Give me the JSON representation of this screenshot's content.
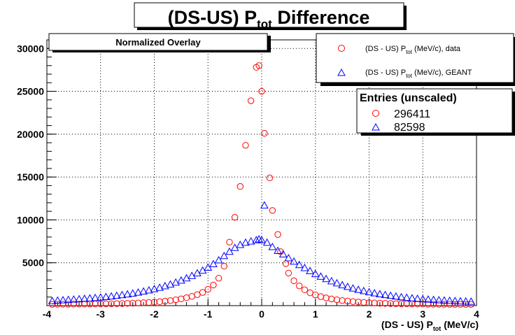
{
  "chart_data": {
    "type": "scatter",
    "title": "(DS-US) P_tot Difference",
    "xlabel": "(DS - US) P_tot (MeV/c)",
    "ylabel": "",
    "xlim": [
      -4,
      4
    ],
    "ylim": [
      0,
      31000
    ],
    "xticks": [
      -4,
      -3,
      -2,
      -1,
      0,
      1,
      2,
      3,
      4
    ],
    "yticks": [
      5000,
      10000,
      15000,
      20000,
      25000,
      30000
    ],
    "grid": true,
    "overlay_label": "Normalized Overlay",
    "legend": {
      "position": "top-right"
    },
    "series": [
      {
        "name": "(DS - US) P_tot (MeV/c), data",
        "marker": "circle",
        "color": "#ff0000",
        "points": [
          [
            -3.9,
            150
          ],
          [
            -3.8,
            160
          ],
          [
            -3.7,
            165
          ],
          [
            -3.6,
            170
          ],
          [
            -3.5,
            175
          ],
          [
            -3.4,
            180
          ],
          [
            -3.3,
            185
          ],
          [
            -3.2,
            190
          ],
          [
            -3.1,
            195
          ],
          [
            -3.0,
            200
          ],
          [
            -2.9,
            210
          ],
          [
            -2.8,
            220
          ],
          [
            -2.7,
            235
          ],
          [
            -2.6,
            250
          ],
          [
            -2.5,
            270
          ],
          [
            -2.4,
            290
          ],
          [
            -2.3,
            310
          ],
          [
            -2.2,
            340
          ],
          [
            -2.1,
            370
          ],
          [
            -2.0,
            410
          ],
          [
            -1.9,
            460
          ],
          [
            -1.8,
            520
          ],
          [
            -1.7,
            590
          ],
          [
            -1.6,
            680
          ],
          [
            -1.5,
            790
          ],
          [
            -1.4,
            920
          ],
          [
            -1.3,
            1080
          ],
          [
            -1.2,
            1280
          ],
          [
            -1.1,
            1540
          ],
          [
            -1.0,
            1900
          ],
          [
            -0.9,
            2400
          ],
          [
            -0.8,
            3200
          ],
          [
            -0.7,
            4600
          ],
          [
            -0.6,
            7400
          ],
          [
            -0.5,
            10300
          ],
          [
            -0.4,
            13900
          ],
          [
            -0.3,
            18700
          ],
          [
            -0.2,
            23900
          ],
          [
            -0.1,
            27800
          ],
          [
            -0.05,
            28000
          ],
          [
            0.0,
            25000
          ],
          [
            0.05,
            20100
          ],
          [
            0.15,
            14900
          ],
          [
            0.2,
            11100
          ],
          [
            0.3,
            8300
          ],
          [
            0.35,
            6300
          ],
          [
            0.45,
            4900
          ],
          [
            0.5,
            3800
          ],
          [
            0.6,
            2900
          ],
          [
            0.7,
            2300
          ],
          [
            0.8,
            1850
          ],
          [
            0.9,
            1500
          ],
          [
            1.0,
            1250
          ],
          [
            1.1,
            1050
          ],
          [
            1.2,
            900
          ],
          [
            1.3,
            780
          ],
          [
            1.4,
            680
          ],
          [
            1.5,
            600
          ],
          [
            1.6,
            530
          ],
          [
            1.7,
            470
          ],
          [
            1.8,
            420
          ],
          [
            1.9,
            380
          ],
          [
            2.0,
            340
          ],
          [
            2.1,
            310
          ],
          [
            2.2,
            285
          ],
          [
            2.3,
            265
          ],
          [
            2.4,
            245
          ],
          [
            2.5,
            230
          ],
          [
            2.6,
            215
          ],
          [
            2.7,
            205
          ],
          [
            2.8,
            195
          ],
          [
            2.9,
            185
          ],
          [
            3.0,
            178
          ],
          [
            3.1,
            170
          ],
          [
            3.2,
            165
          ],
          [
            3.3,
            160
          ],
          [
            3.4,
            155
          ],
          [
            3.5,
            150
          ],
          [
            3.6,
            148
          ],
          [
            3.7,
            145
          ],
          [
            3.8,
            142
          ],
          [
            3.9,
            140
          ]
        ]
      },
      {
        "name": "(DS - US) P_tot (MeV/c), GEANT",
        "marker": "triangle",
        "color": "#0000ff",
        "points": [
          [
            -3.9,
            550
          ],
          [
            -3.8,
            600
          ],
          [
            -3.7,
            640
          ],
          [
            -3.6,
            680
          ],
          [
            -3.5,
            720
          ],
          [
            -3.4,
            760
          ],
          [
            -3.3,
            810
          ],
          [
            -3.2,
            860
          ],
          [
            -3.1,
            910
          ],
          [
            -3.0,
            960
          ],
          [
            -2.9,
            1020
          ],
          [
            -2.8,
            1090
          ],
          [
            -2.7,
            1160
          ],
          [
            -2.6,
            1240
          ],
          [
            -2.5,
            1330
          ],
          [
            -2.4,
            1430
          ],
          [
            -2.3,
            1540
          ],
          [
            -2.2,
            1660
          ],
          [
            -2.1,
            1790
          ],
          [
            -2.0,
            1940
          ],
          [
            -1.9,
            2100
          ],
          [
            -1.8,
            2280
          ],
          [
            -1.7,
            2480
          ],
          [
            -1.6,
            2700
          ],
          [
            -1.5,
            2940
          ],
          [
            -1.4,
            3200
          ],
          [
            -1.3,
            3480
          ],
          [
            -1.2,
            3780
          ],
          [
            -1.1,
            4100
          ],
          [
            -1.0,
            4450
          ],
          [
            -0.9,
            4850
          ],
          [
            -0.8,
            5300
          ],
          [
            -0.7,
            5800
          ],
          [
            -0.6,
            6300
          ],
          [
            -0.5,
            6750
          ],
          [
            -0.4,
            7100
          ],
          [
            -0.3,
            7350
          ],
          [
            -0.2,
            7500
          ],
          [
            -0.1,
            7650
          ],
          [
            -0.05,
            7750
          ],
          [
            0.0,
            7650
          ],
          [
            0.05,
            11700
          ],
          [
            0.1,
            7350
          ],
          [
            0.2,
            6850
          ],
          [
            0.3,
            6400
          ],
          [
            0.4,
            6000
          ],
          [
            0.5,
            5550
          ],
          [
            0.6,
            5150
          ],
          [
            0.7,
            4750
          ],
          [
            0.8,
            4400
          ],
          [
            0.9,
            4050
          ],
          [
            1.0,
            3700
          ],
          [
            1.1,
            3400
          ],
          [
            1.2,
            3120
          ],
          [
            1.3,
            2860
          ],
          [
            1.4,
            2620
          ],
          [
            1.5,
            2400
          ],
          [
            1.6,
            2200
          ],
          [
            1.7,
            2020
          ],
          [
            1.8,
            1860
          ],
          [
            1.9,
            1710
          ],
          [
            2.0,
            1580
          ],
          [
            2.1,
            1460
          ],
          [
            2.2,
            1350
          ],
          [
            2.3,
            1250
          ],
          [
            2.4,
            1160
          ],
          [
            2.5,
            1080
          ],
          [
            2.6,
            1000
          ],
          [
            2.7,
            930
          ],
          [
            2.8,
            870
          ],
          [
            2.9,
            810
          ],
          [
            3.0,
            760
          ],
          [
            3.1,
            720
          ],
          [
            3.2,
            680
          ],
          [
            3.3,
            640
          ],
          [
            3.4,
            610
          ],
          [
            3.5,
            580
          ],
          [
            3.6,
            550
          ],
          [
            3.7,
            520
          ],
          [
            3.8,
            500
          ],
          [
            3.9,
            480
          ]
        ]
      }
    ],
    "stats_box": {
      "title": "Entries (unscaled)",
      "entries": [
        {
          "marker": "circle",
          "color": "#ff0000",
          "value": "296411"
        },
        {
          "marker": "triangle",
          "color": "#0000ff",
          "value": "82598"
        }
      ]
    }
  }
}
